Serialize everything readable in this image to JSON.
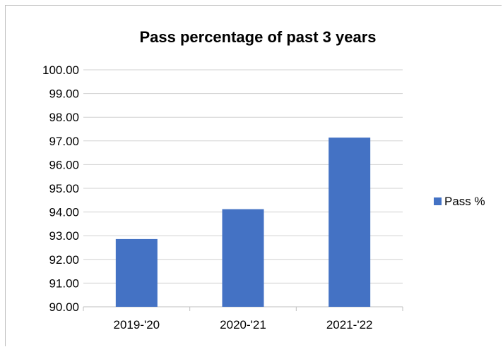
{
  "chart_data": {
    "type": "bar",
    "title": "Pass percentage of past 3 years",
    "categories": [
      "2019-'20",
      "2020-'21",
      "2021-'22"
    ],
    "series": [
      {
        "name": "Pass %",
        "values": [
          92.86,
          94.12,
          97.14
        ],
        "color": "#4472c4"
      }
    ],
    "xlabel": "",
    "ylabel": "",
    "ylim": [
      90,
      100
    ],
    "yticks": [
      "90.00",
      "91.00",
      "92.00",
      "93.00",
      "94.00",
      "95.00",
      "96.00",
      "97.00",
      "98.00",
      "99.00",
      "100.00"
    ],
    "grid": true,
    "legend_position": "right"
  }
}
